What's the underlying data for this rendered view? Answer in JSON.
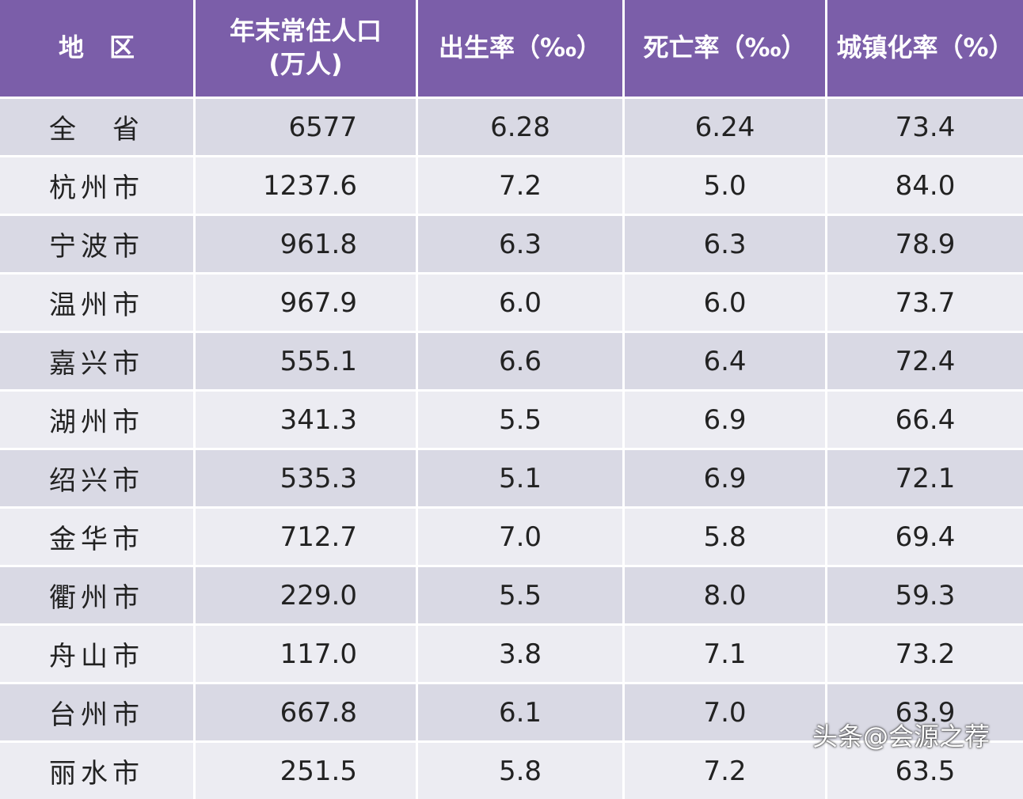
{
  "table": {
    "header": [
      "地　区",
      "年末常住人口\n(万人)",
      "出生率（‰）",
      "死亡率（‰）",
      "城镇化率（%）"
    ],
    "rows": [
      [
        "全　省",
        "6577",
        "6.28",
        "6.24",
        "73.4"
      ],
      [
        "杭州市",
        "1237.6",
        "7.2",
        "5.0",
        "84.0"
      ],
      [
        "宁波市",
        "961.8",
        "6.3",
        "6.3",
        "78.9"
      ],
      [
        "温州市",
        "967.9",
        "6.0",
        "6.0",
        "73.7"
      ],
      [
        "嘉兴市",
        "555.1",
        "6.6",
        "6.4",
        "72.4"
      ],
      [
        "湖州市",
        "341.3",
        "5.5",
        "6.9",
        "66.4"
      ],
      [
        "绍兴市",
        "535.3",
        "5.1",
        "6.9",
        "72.1"
      ],
      [
        "金华市",
        "712.7",
        "7.0",
        "5.8",
        "69.4"
      ],
      [
        "衢州市",
        "229.0",
        "5.5",
        "8.0",
        "59.3"
      ],
      [
        "舟山市",
        "117.0",
        "3.8",
        "7.1",
        "73.2"
      ],
      [
        "台州市",
        "667.8",
        "6.1",
        "7.0",
        "63.9"
      ],
      [
        "丽水市",
        "251.5",
        "5.8",
        "7.2",
        "63.5"
      ]
    ]
  },
  "watermark": "头条@会源之荐"
}
